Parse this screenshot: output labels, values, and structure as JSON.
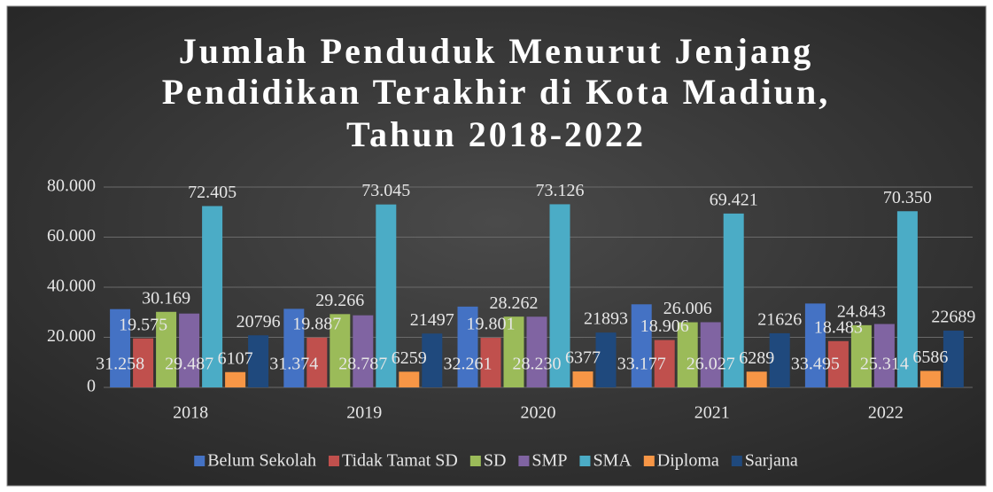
{
  "chart_data": {
    "type": "bar",
    "title": [
      "Jumlah Penduduk Menurut Jenjang",
      "Pendidikan Terakhir di Kota Madiun,",
      "Tahun 2018-2022"
    ],
    "categories": [
      "2018",
      "2019",
      "2020",
      "2021",
      "2022"
    ],
    "series": [
      {
        "name": "Belum Sekolah",
        "color": "#4472c4",
        "values": [
          31258,
          31374,
          32261,
          33177,
          33495
        ],
        "value_labels": [
          "31.258",
          "31.374",
          "32.261",
          "33.177",
          "33.495"
        ]
      },
      {
        "name": "Tidak Tamat SD",
        "color": "#c0504d",
        "values": [
          19575,
          19887,
          19801,
          18906,
          18483
        ],
        "value_labels": [
          "19.575",
          "19.887",
          "19.801",
          "18.906",
          "18.483"
        ]
      },
      {
        "name": "SD",
        "color": "#9bbb59",
        "values": [
          30169,
          29266,
          28262,
          26006,
          24843
        ],
        "value_labels": [
          "30.169",
          "29.266",
          "28.262",
          "26.006",
          "24.843"
        ]
      },
      {
        "name": "SMP",
        "color": "#8064a2",
        "values": [
          29487,
          28787,
          28230,
          26027,
          25314
        ],
        "value_labels": [
          "29.487",
          "28.787",
          "28.230",
          "26.027",
          "25.314"
        ]
      },
      {
        "name": "SMA",
        "color": "#4bacc6",
        "values": [
          72405,
          73045,
          73126,
          69421,
          70350
        ],
        "value_labels": [
          "72.405",
          "73.045",
          "73.126",
          "69.421",
          "70.350"
        ]
      },
      {
        "name": "Diploma",
        "color": "#f79646",
        "values": [
          6107,
          6259,
          6377,
          6289,
          6586
        ]
      },
      {
        "name": "Sarjana",
        "color": "#1f497d",
        "values": [
          20796,
          21497,
          21893,
          21626,
          22689
        ]
      }
    ],
    "ylim": [
      0,
      80000
    ],
    "yticks": [
      0,
      {
        "value": 20000,
        "label": "20.000"
      },
      {
        "value": 40000,
        "label": "40.000"
      },
      {
        "value": 60000,
        "label": "60.000"
      },
      {
        "value": 80000,
        "label": "80.000"
      }
    ],
    "grid": true,
    "legend": "bottom"
  }
}
